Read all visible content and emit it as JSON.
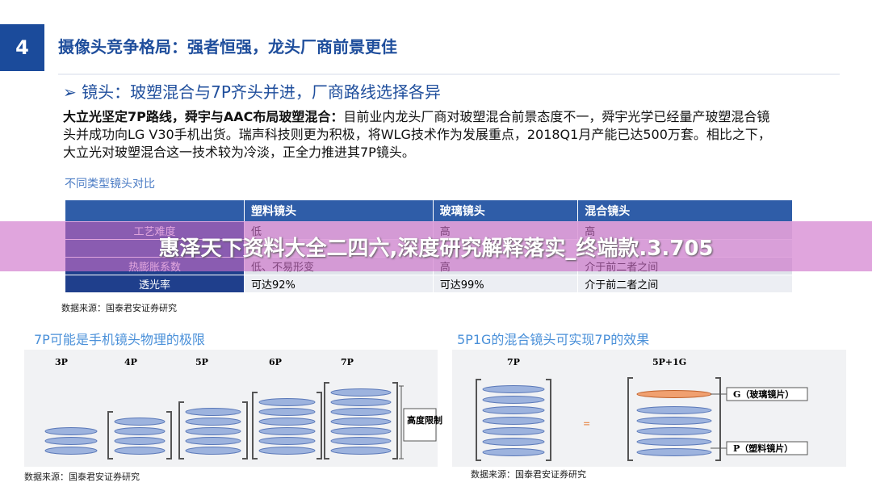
{
  "header": {
    "number": "4",
    "title": "摄像头竞争格局：强者恒强，龙头厂商前景更佳"
  },
  "bullet": "镜头：玻塑混合与7P齐头并进，厂商路线选择各异",
  "paragraph": {
    "lead": "大立光坚定7P路线，舜宇与AAC布局玻塑混合：",
    "text": "目前业内龙头厂商对玻塑混合前景态度不一，舜宇光学已经量产玻塑混合镜头并成功向LG V30手机出货。瑞声科技则更为积极，将WLG技术作为发展重点，2018Q1月产能已达500万套。相比之下，大立光对玻塑混合这一技术较为冷淡，正全力推进其7P镜头。"
  },
  "table": {
    "title": "不同类型镜头对比",
    "headers": [
      "塑料镜头",
      "玻璃镜头",
      "混合镜头"
    ],
    "rows": [
      [
        "工艺难度",
        "低",
        "高",
        "高"
      ],
      [
        "热膨胀系数",
        "低、不易形变",
        "高",
        "介于前二者之间"
      ],
      [
        "透光率",
        "可达92%",
        "可达99%",
        "介于前二者之间"
      ]
    ],
    "source": "数据来源：国泰君安证券研究"
  },
  "left_panel": {
    "title": "7P可能是手机镜头物理的极限",
    "labels": [
      "3P",
      "4P",
      "5P",
      "6P",
      "7P"
    ],
    "height_limit": "高度限制",
    "source": "数据来源：国泰君安证券研究"
  },
  "right_panel": {
    "title": "5P1G的混合镜头可实现7P的效果",
    "labels": [
      "7P",
      "5P+1G"
    ],
    "glass": "G（玻璃镜片）",
    "plastic": "P（塑料镜片）",
    "source": "数据来源：国泰君安证券研究"
  },
  "banner": "惠泽天下资料大全二四六,深度研究解释落实_终端款.3.705"
}
